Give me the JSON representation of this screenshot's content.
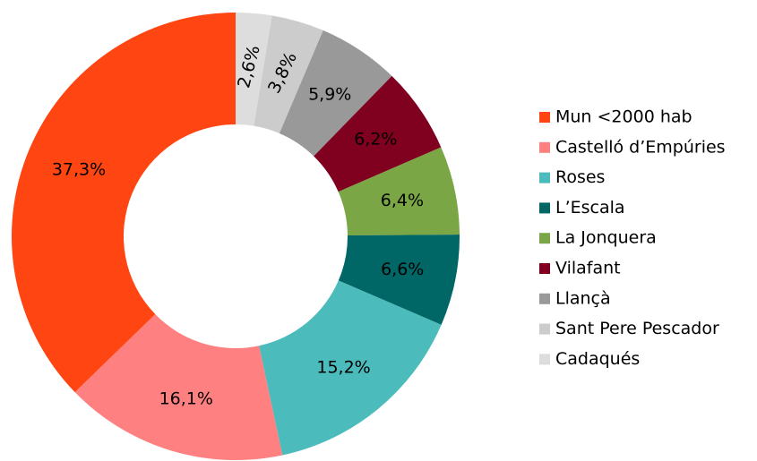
{
  "chart_data": {
    "type": "donut",
    "categories": [
      "Mun <2000 hab",
      "Castelló d’Empúries",
      "Roses",
      "L’Escala",
      "La Jonquera",
      "Vilafant",
      "Llançà",
      "Sant Pere Pescador",
      "Cadaqués"
    ],
    "values": [
      37.3,
      16.1,
      15.2,
      6.6,
      6.4,
      6.2,
      5.9,
      3.8,
      2.6
    ],
    "value_labels": [
      "37,3%",
      "16,1%",
      "15,2%",
      "6,6%",
      "6,4%",
      "6,2%",
      "5,9%",
      "3,8%",
      "2,6%"
    ],
    "colors": [
      "#ff4612",
      "#ff8080",
      "#4bbbbb",
      "#006666",
      "#7aa645",
      "#800020",
      "#999999",
      "#cccccc",
      "#dddddd"
    ],
    "legend": "right"
  }
}
